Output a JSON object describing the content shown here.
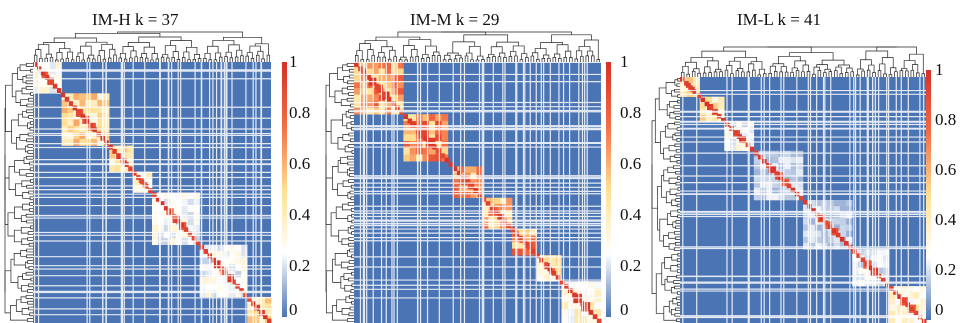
{
  "chart_data": [
    {
      "type": "heatmap",
      "title": "IM-H k = 37",
      "k": 37,
      "colorbar": {
        "ticks": [
          "0",
          "0.2",
          "0.4",
          "0.6",
          "0.8",
          "1"
        ],
        "range": [
          0,
          1
        ]
      },
      "colorscale": [
        "#4a74b4",
        "#ffffff",
        "#fee090",
        "#f46d43",
        "#d73027"
      ],
      "dendrograms": [
        "top",
        "left"
      ]
    },
    {
      "type": "heatmap",
      "title": "IM-M k = 29",
      "k": 29,
      "colorbar": {
        "ticks": [
          "0",
          "0.2",
          "0.4",
          "0.6",
          "0.8",
          "1"
        ],
        "range": [
          0,
          1
        ]
      },
      "colorscale": [
        "#4a74b4",
        "#ffffff",
        "#fee090",
        "#f46d43",
        "#d73027"
      ],
      "dendrograms": [
        "top",
        "left"
      ]
    },
    {
      "type": "heatmap",
      "title": "IM-L k = 41",
      "k": 41,
      "colorbar": {
        "ticks": [
          "0",
          "0.2",
          "0.4",
          "0.6",
          "0.8",
          "1"
        ],
        "range": [
          0,
          1
        ]
      },
      "colorscale": [
        "#4a74b4",
        "#ffffff",
        "#fee090",
        "#f46d43",
        "#d73027"
      ],
      "dendrograms": [
        "top",
        "left"
      ]
    }
  ]
}
